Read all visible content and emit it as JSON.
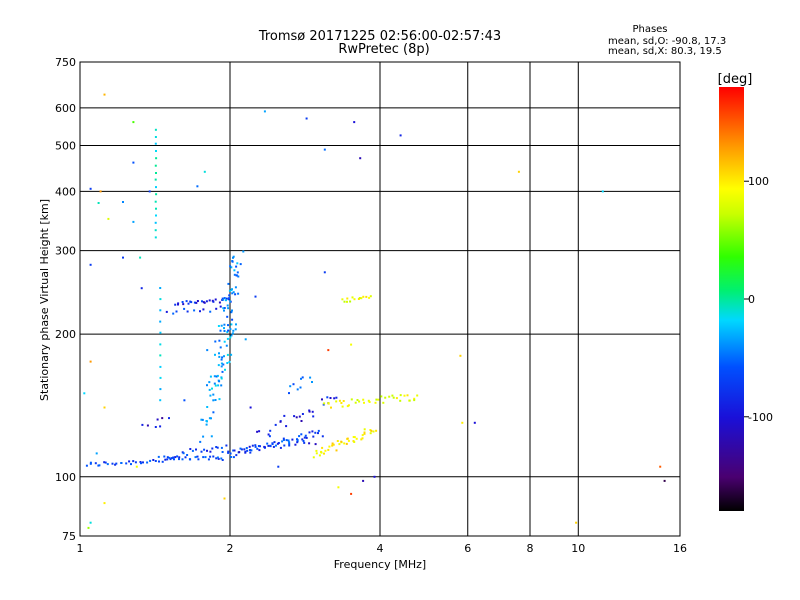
{
  "header": {
    "title": "Tromsø 20171225 02:56:00-02:57:43",
    "subtitle": "RwPretec (8p)"
  },
  "stats": {
    "heading": "Phases",
    "line_o": "mean, sd,O: -90.8, 17.3",
    "line_x": "mean, sd,X:  80.3, 19.5"
  },
  "colorbar": {
    "label": "[deg]",
    "min": -180,
    "max": 180,
    "tick_values": [
      100,
      0,
      -100
    ],
    "tick_labels": [
      "100",
      "0",
      "-100"
    ]
  },
  "chart_data": {
    "type": "scatter",
    "title": "Tromsø 20171225 02:56:00-02:57:43",
    "subtitle": "RwPretec (8p)",
    "xlabel": "Frequency [MHz]",
    "ylabel": "Stationary phase Virtual Height [km]",
    "x_scale": "log",
    "y_scale": "log",
    "xlim": [
      1,
      16
    ],
    "ylim": [
      75,
      750
    ],
    "x_ticks": [
      1,
      2,
      4,
      6,
      8,
      10,
      16
    ],
    "x_tick_labels": [
      "1",
      "2",
      "4",
      "6",
      "8",
      "10",
      "16"
    ],
    "y_ticks": [
      75,
      100,
      200,
      300,
      400,
      500,
      600,
      750
    ],
    "y_tick_labels": [
      "75",
      "100",
      "200",
      "300",
      "400",
      "500",
      "600",
      "750"
    ],
    "grid": true,
    "color_scale": "phase [deg], -180 to 180, black-purple-blue-cyan-green-yellow-orange-red",
    "traces": [
      {
        "kind": "line",
        "x0": 1.03,
        "x1": 1.88,
        "y0": 106,
        "y1": 110,
        "n": 48,
        "phase": -95,
        "jitter": 0.015
      },
      {
        "kind": "line",
        "x0": 1.45,
        "x1": 1.95,
        "y0": 110,
        "y1": 116,
        "n": 22,
        "phase": -100,
        "jitter": 0.02
      },
      {
        "kind": "line",
        "x0": 1.88,
        "x1": 3.05,
        "y0": 110,
        "y1": 124,
        "n": 60,
        "phase": -95,
        "jitter": 0.025
      },
      {
        "kind": "line",
        "x0": 2.05,
        "x1": 2.95,
        "y0": 114,
        "y1": 118,
        "n": 20,
        "phase": -110,
        "jitter": 0.02
      },
      {
        "kind": "line",
        "x0": 2.3,
        "x1": 3.3,
        "y0": 122,
        "y1": 148,
        "n": 26,
        "phase": -112,
        "jitter": 0.04
      },
      {
        "kind": "line",
        "x0": 2.6,
        "x1": 2.9,
        "y0": 152,
        "y1": 162,
        "n": 9,
        "phase": -80,
        "jitter": 0.03
      },
      {
        "kind": "line",
        "x0": 2.95,
        "x1": 3.9,
        "y0": 111,
        "y1": 126,
        "n": 40,
        "phase": 95,
        "jitter": 0.025
      },
      {
        "kind": "line",
        "x0": 3.1,
        "x1": 4.8,
        "y0": 142,
        "y1": 148,
        "n": 38,
        "phase": 88,
        "jitter": 0.025
      },
      {
        "kind": "line",
        "x0": 3.35,
        "x1": 3.85,
        "y0": 235,
        "y1": 240,
        "n": 14,
        "phase": 85,
        "jitter": 0.015
      },
      {
        "kind": "line",
        "x0": 1.55,
        "x1": 2.0,
        "y0": 232,
        "y1": 236,
        "n": 26,
        "phase": -110,
        "jitter": 0.012
      },
      {
        "kind": "line",
        "x0": 1.5,
        "x1": 1.95,
        "y0": 222,
        "y1": 226,
        "n": 12,
        "phase": -100,
        "jitter": 0.02
      },
      {
        "kind": "line",
        "x0": 1.78,
        "x1": 2.08,
        "y0": 122,
        "y1": 300,
        "n": 70,
        "phase": -65,
        "jitter": 0.06
      },
      {
        "kind": "line",
        "x0": 1.88,
        "x1": 2.02,
        "y0": 150,
        "y1": 210,
        "n": 24,
        "phase": -50,
        "jitter": 0.05
      },
      {
        "kind": "line",
        "x0": 2.0,
        "x1": 2.06,
        "y0": 200,
        "y1": 280,
        "n": 16,
        "phase": -75,
        "jitter": 0.04
      },
      {
        "kind": "line",
        "x0": 1.42,
        "x1": 1.42,
        "y0": 320,
        "y1": 540,
        "n": 16,
        "phase": -30,
        "jitter": 0.002
      },
      {
        "kind": "line",
        "x0": 1.45,
        "x1": 1.45,
        "y0": 145,
        "y1": 250,
        "n": 11,
        "phase": -40,
        "jitter": 0.002
      },
      {
        "kind": "line",
        "x0": 1.35,
        "x1": 1.5,
        "y0": 128,
        "y1": 132,
        "n": 7,
        "phase": -120,
        "jitter": 0.03
      }
    ],
    "points": [
      [
        1.12,
        640,
        120
      ],
      [
        1.28,
        560,
        40
      ],
      [
        1.05,
        405,
        -100
      ],
      [
        1.09,
        378,
        -20
      ],
      [
        1.14,
        350,
        80
      ],
      [
        1.28,
        460,
        -90
      ],
      [
        1.22,
        380,
        -70
      ],
      [
        1.28,
        345,
        -60
      ],
      [
        1.22,
        290,
        -100
      ],
      [
        1.32,
        290,
        -20
      ],
      [
        1.05,
        280,
        -100
      ],
      [
        1.1,
        400,
        130
      ],
      [
        1.33,
        250,
        -110
      ],
      [
        1.02,
        150,
        -40
      ],
      [
        1.05,
        175,
        130
      ],
      [
        1.12,
        140,
        110
      ],
      [
        1.08,
        112,
        -60
      ],
      [
        1.12,
        88,
        100
      ],
      [
        1.05,
        80,
        -30
      ],
      [
        1.04,
        78,
        60
      ],
      [
        1.3,
        105,
        90
      ],
      [
        1.38,
        400,
        -100
      ],
      [
        1.72,
        410,
        -80
      ],
      [
        1.78,
        440,
        -30
      ],
      [
        2.35,
        590,
        -60
      ],
      [
        2.85,
        570,
        -100
      ],
      [
        3.1,
        490,
        -80
      ],
      [
        3.55,
        560,
        -120
      ],
      [
        3.65,
        470,
        -130
      ],
      [
        4.4,
        525,
        -110
      ],
      [
        7.6,
        440,
        110
      ],
      [
        11.2,
        400,
        -40
      ],
      [
        3.1,
        270,
        -100
      ],
      [
        5.8,
        180,
        110
      ],
      [
        3.15,
        185,
        160
      ],
      [
        3.5,
        190,
        90
      ],
      [
        5.85,
        130,
        100
      ],
      [
        6.2,
        130,
        -120
      ],
      [
        3.3,
        95,
        90
      ],
      [
        3.5,
        92,
        160
      ],
      [
        3.7,
        98,
        -130
      ],
      [
        3.9,
        100,
        -120
      ],
      [
        9.9,
        80,
        110
      ],
      [
        14.6,
        105,
        150
      ],
      [
        14.9,
        98,
        -160
      ],
      [
        2.2,
        140,
        -120
      ],
      [
        1.95,
        90,
        110
      ],
      [
        2.5,
        105,
        -100
      ],
      [
        1.9,
        208,
        -40
      ],
      [
        2.15,
        195,
        -60
      ],
      [
        1.62,
        145,
        -90
      ],
      [
        1.8,
        185,
        -70
      ],
      [
        2.25,
        240,
        -100
      ]
    ]
  }
}
